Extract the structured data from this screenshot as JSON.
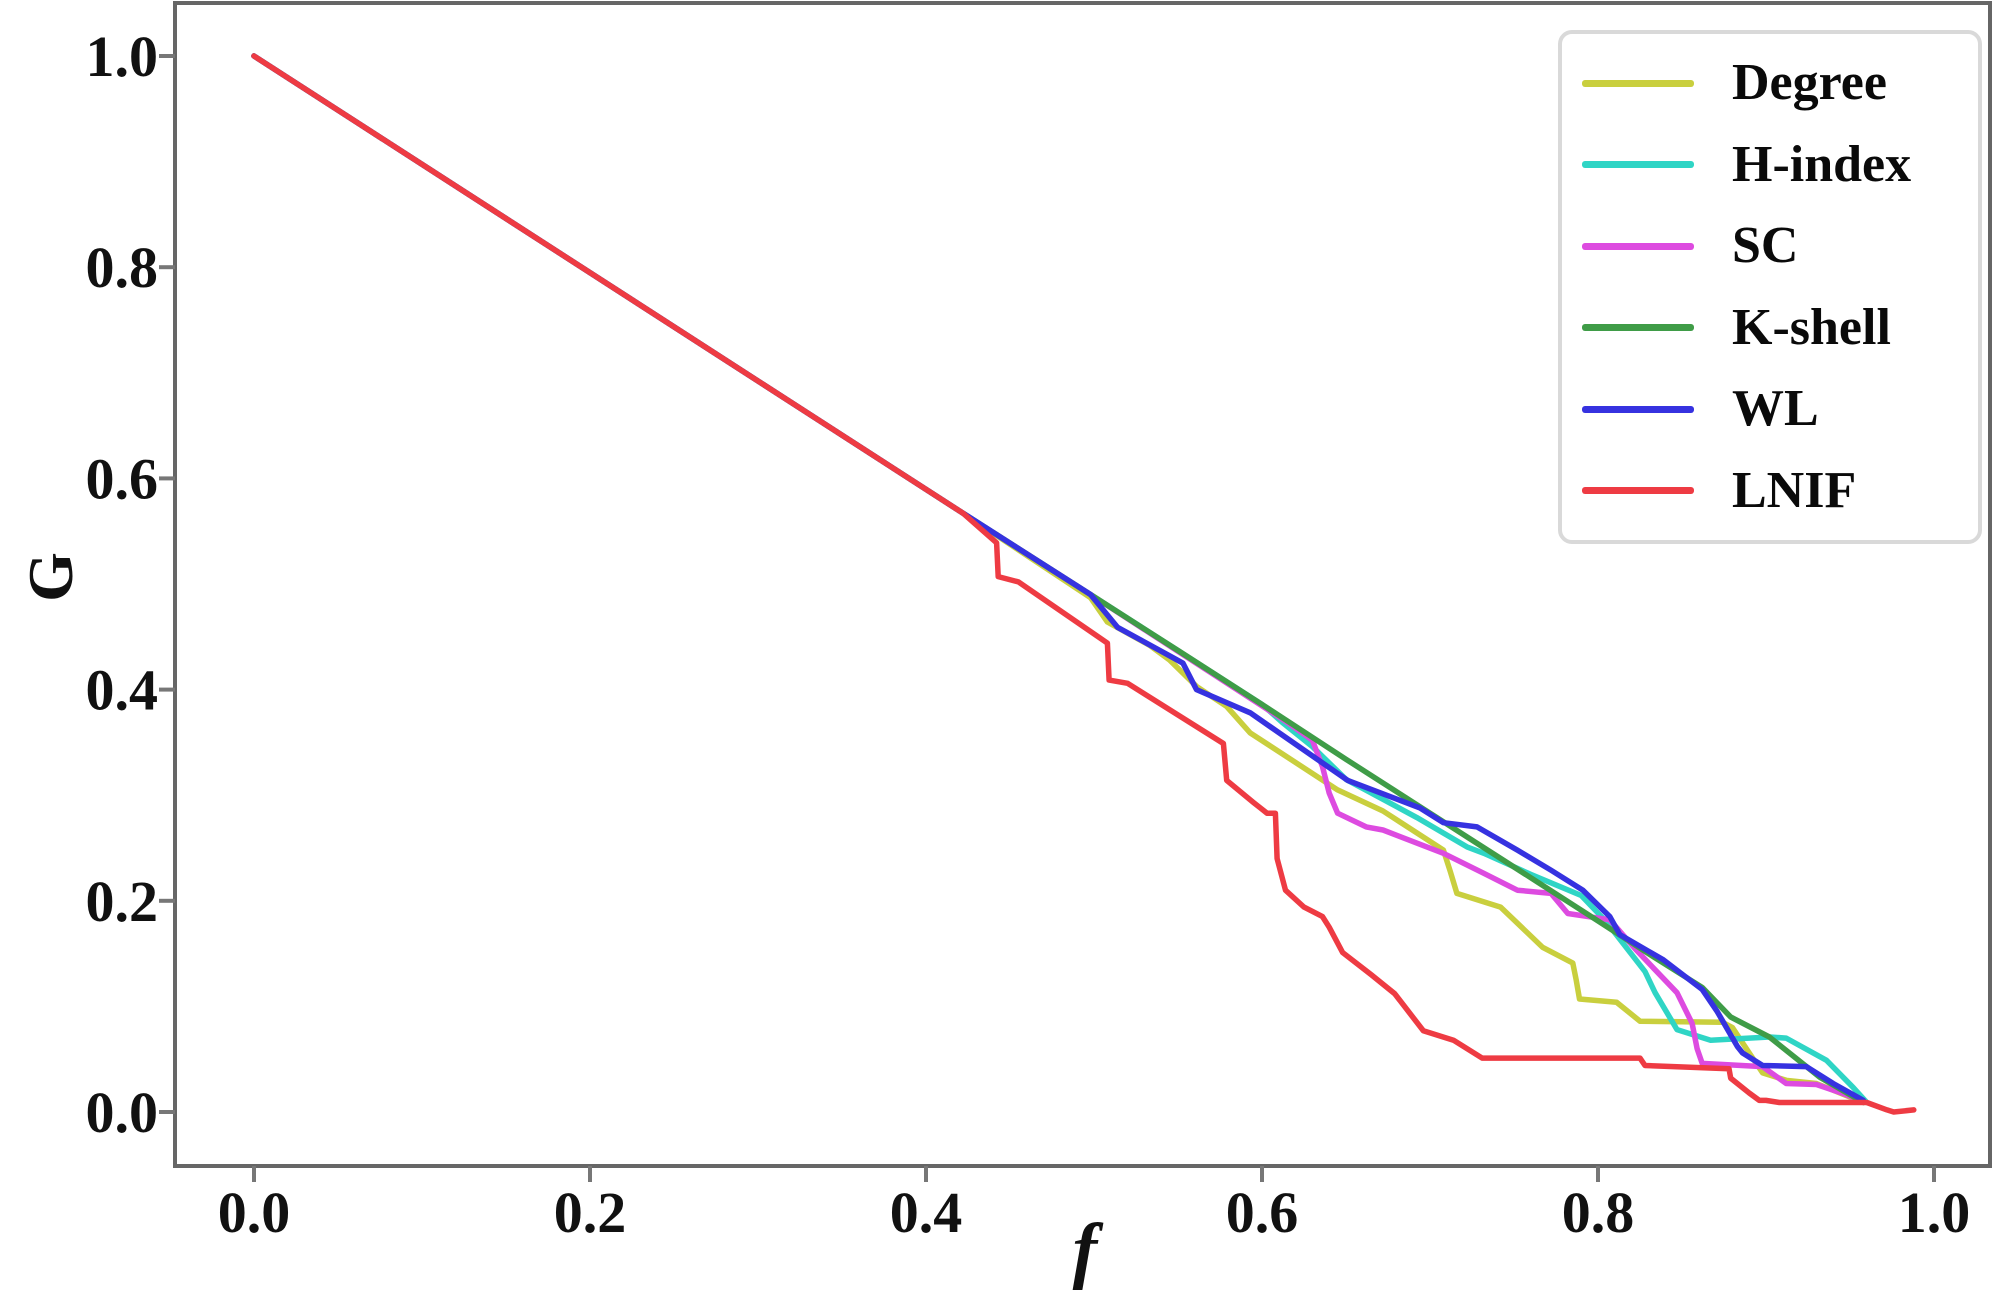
{
  "axes": {
    "xlabel": "f",
    "ylabel": "G",
    "x_tick_labels": [
      "0.0",
      "0.2",
      "0.4",
      "0.6",
      "0.8",
      "1.0"
    ],
    "x_tick_values": [
      0.0,
      0.2,
      0.4,
      0.6,
      0.8,
      1.0
    ],
    "y_tick_labels": [
      "0.0",
      "0.2",
      "0.4",
      "0.6",
      "0.8",
      "1.0"
    ],
    "y_tick_values": [
      0.0,
      0.2,
      0.4,
      0.6,
      0.8,
      1.0
    ],
    "spine_color": "#666666",
    "tick_color": "#777777"
  },
  "legend": {
    "position": "upper right",
    "items": [
      {
        "label": "Degree",
        "color": "#c9cf3e"
      },
      {
        "label": "H-index",
        "color": "#2fd5c5"
      },
      {
        "label": "SC",
        "color": "#dd4be0"
      },
      {
        "label": "K-shell",
        "color": "#3f9c47"
      },
      {
        "label": "WL",
        "color": "#3632e0"
      },
      {
        "label": "LNIF",
        "color": "#ee3b43"
      }
    ]
  },
  "chart_data": {
    "type": "line",
    "title": "",
    "xlabel": "f",
    "ylabel": "G",
    "xlim": [
      -0.047,
      1.033
    ],
    "ylim": [
      -0.051,
      1.05
    ],
    "grid": false,
    "legend_position": "upper right",
    "series": [
      {
        "name": "Degree",
        "color": "#c9cf3e",
        "points": [
          [
            0.0,
            1.0
          ],
          [
            0.422,
            0.567
          ],
          [
            0.498,
            0.487
          ],
          [
            0.508,
            0.464
          ],
          [
            0.533,
            0.442
          ],
          [
            0.545,
            0.428
          ],
          [
            0.561,
            0.403
          ],
          [
            0.579,
            0.384
          ],
          [
            0.593,
            0.359
          ],
          [
            0.645,
            0.305
          ],
          [
            0.672,
            0.285
          ],
          [
            0.708,
            0.248
          ],
          [
            0.712,
            0.228
          ],
          [
            0.716,
            0.207
          ],
          [
            0.742,
            0.194
          ],
          [
            0.767,
            0.156
          ],
          [
            0.785,
            0.141
          ],
          [
            0.787,
            0.125
          ],
          [
            0.789,
            0.107
          ],
          [
            0.811,
            0.104
          ],
          [
            0.825,
            0.086
          ],
          [
            0.874,
            0.085
          ],
          [
            0.88,
            0.08
          ],
          [
            0.89,
            0.056
          ],
          [
            0.898,
            0.037
          ],
          [
            0.912,
            0.03
          ],
          [
            0.93,
            0.027
          ],
          [
            0.958,
            0.009
          ]
        ]
      },
      {
        "name": "H-index",
        "color": "#2fd5c5",
        "points": [
          [
            0.0,
            1.0
          ],
          [
            0.422,
            0.567
          ],
          [
            0.498,
            0.49
          ],
          [
            0.6,
            0.386
          ],
          [
            0.612,
            0.369
          ],
          [
            0.63,
            0.346
          ],
          [
            0.65,
            0.315
          ],
          [
            0.692,
            0.279
          ],
          [
            0.722,
            0.251
          ],
          [
            0.732,
            0.245
          ],
          [
            0.76,
            0.225
          ],
          [
            0.79,
            0.205
          ],
          [
            0.805,
            0.18
          ],
          [
            0.828,
            0.133
          ],
          [
            0.834,
            0.113
          ],
          [
            0.847,
            0.078
          ],
          [
            0.867,
            0.068
          ],
          [
            0.902,
            0.071
          ],
          [
            0.912,
            0.07
          ],
          [
            0.936,
            0.049
          ],
          [
            0.952,
            0.023
          ],
          [
            0.96,
            0.009
          ]
        ]
      },
      {
        "name": "SC",
        "color": "#dd4be0",
        "points": [
          [
            0.0,
            1.0
          ],
          [
            0.422,
            0.567
          ],
          [
            0.498,
            0.49
          ],
          [
            0.615,
            0.369
          ],
          [
            0.63,
            0.352
          ],
          [
            0.636,
            0.327
          ],
          [
            0.64,
            0.302
          ],
          [
            0.645,
            0.283
          ],
          [
            0.662,
            0.27
          ],
          [
            0.672,
            0.267
          ],
          [
            0.708,
            0.245
          ],
          [
            0.732,
            0.226
          ],
          [
            0.752,
            0.21
          ],
          [
            0.772,
            0.207
          ],
          [
            0.782,
            0.188
          ],
          [
            0.807,
            0.182
          ],
          [
            0.823,
            0.153
          ],
          [
            0.847,
            0.113
          ],
          [
            0.856,
            0.084
          ],
          [
            0.859,
            0.06
          ],
          [
            0.862,
            0.046
          ],
          [
            0.898,
            0.043
          ],
          [
            0.912,
            0.027
          ],
          [
            0.93,
            0.026
          ],
          [
            0.945,
            0.018
          ],
          [
            0.958,
            0.01
          ]
        ]
      },
      {
        "name": "K-shell",
        "color": "#3f9c47",
        "points": [
          [
            0.0,
            1.0
          ],
          [
            0.422,
            0.567
          ],
          [
            0.498,
            0.49
          ],
          [
            0.55,
            0.437
          ],
          [
            0.6,
            0.386
          ],
          [
            0.65,
            0.334
          ],
          [
            0.7,
            0.283
          ],
          [
            0.75,
            0.232
          ],
          [
            0.8,
            0.181
          ],
          [
            0.83,
            0.15
          ],
          [
            0.862,
            0.118
          ],
          [
            0.879,
            0.09
          ],
          [
            0.902,
            0.071
          ],
          [
            0.932,
            0.033
          ],
          [
            0.958,
            0.009
          ]
        ]
      },
      {
        "name": "WL",
        "color": "#3632e0",
        "points": [
          [
            0.0,
            1.0
          ],
          [
            0.422,
            0.567
          ],
          [
            0.498,
            0.49
          ],
          [
            0.514,
            0.459
          ],
          [
            0.545,
            0.432
          ],
          [
            0.553,
            0.425
          ],
          [
            0.561,
            0.4
          ],
          [
            0.593,
            0.378
          ],
          [
            0.651,
            0.314
          ],
          [
            0.694,
            0.288
          ],
          [
            0.708,
            0.274
          ],
          [
            0.728,
            0.27
          ],
          [
            0.752,
            0.248
          ],
          [
            0.772,
            0.229
          ],
          [
            0.791,
            0.21
          ],
          [
            0.807,
            0.185
          ],
          [
            0.813,
            0.168
          ],
          [
            0.839,
            0.144
          ],
          [
            0.862,
            0.116
          ],
          [
            0.871,
            0.095
          ],
          [
            0.883,
            0.062
          ],
          [
            0.886,
            0.056
          ],
          [
            0.898,
            0.044
          ],
          [
            0.924,
            0.043
          ],
          [
            0.94,
            0.027
          ],
          [
            0.958,
            0.011
          ]
        ]
      },
      {
        "name": "LNIF",
        "color": "#ee3b43",
        "points": [
          [
            0.0,
            1.0
          ],
          [
            0.422,
            0.567
          ],
          [
            0.442,
            0.539
          ],
          [
            0.443,
            0.507
          ],
          [
            0.455,
            0.502
          ],
          [
            0.508,
            0.444
          ],
          [
            0.509,
            0.409
          ],
          [
            0.52,
            0.406
          ],
          [
            0.577,
            0.349
          ],
          [
            0.579,
            0.314
          ],
          [
            0.595,
            0.293
          ],
          [
            0.599,
            0.288
          ],
          [
            0.603,
            0.283
          ],
          [
            0.608,
            0.283
          ],
          [
            0.609,
            0.24
          ],
          [
            0.614,
            0.21
          ],
          [
            0.625,
            0.194
          ],
          [
            0.636,
            0.185
          ],
          [
            0.64,
            0.175
          ],
          [
            0.648,
            0.151
          ],
          [
            0.665,
            0.13
          ],
          [
            0.679,
            0.112
          ],
          [
            0.696,
            0.077
          ],
          [
            0.714,
            0.068
          ],
          [
            0.731,
            0.051
          ],
          [
            0.825,
            0.051
          ],
          [
            0.828,
            0.044
          ],
          [
            0.878,
            0.041
          ],
          [
            0.879,
            0.032
          ],
          [
            0.89,
            0.018
          ],
          [
            0.896,
            0.011
          ],
          [
            0.9,
            0.011
          ],
          [
            0.908,
            0.009
          ],
          [
            0.96,
            0.009
          ],
          [
            0.972,
            0.002
          ],
          [
            0.976,
            0.0
          ],
          [
            0.988,
            0.002
          ]
        ]
      }
    ]
  }
}
